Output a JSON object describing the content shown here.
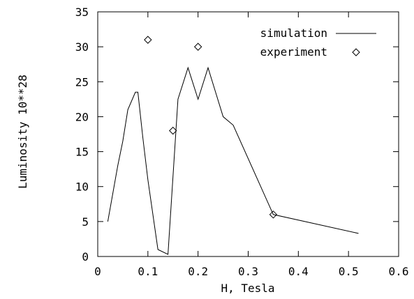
{
  "chart_data": {
    "type": "line",
    "xlabel": "H, Tesla",
    "ylabel": "Luminosity 10**28",
    "xlim": [
      0,
      0.6
    ],
    "ylim": [
      0,
      35
    ],
    "x_ticks": [
      "0",
      "0.1",
      "0.2",
      "0.3",
      "0.4",
      "0.5",
      "0.6"
    ],
    "y_ticks": [
      "0",
      "5",
      "10",
      "15",
      "20",
      "25",
      "30",
      "35"
    ],
    "grid": false,
    "legend_position": "top-right",
    "series": [
      {
        "name": "simulation",
        "style": "line",
        "color": "#000000",
        "x": [
          0.02,
          0.04,
          0.05,
          0.06,
          0.075,
          0.08,
          0.09,
          0.1,
          0.12,
          0.14,
          0.16,
          0.18,
          0.2,
          0.22,
          0.25,
          0.27,
          0.35,
          0.52
        ],
        "y": [
          5.0,
          13.0,
          16.5,
          21.0,
          23.5,
          23.5,
          17.0,
          11.0,
          1.0,
          0.3,
          22.5,
          27.0,
          22.5,
          27.0,
          20.0,
          18.8,
          6.0,
          3.3
        ]
      },
      {
        "name": "experiment",
        "style": "marker",
        "marker": "diamond",
        "color": "#000000",
        "x": [
          0.1,
          0.15,
          0.2,
          0.35
        ],
        "y": [
          31.0,
          18.0,
          30.0,
          6.0
        ]
      }
    ]
  }
}
